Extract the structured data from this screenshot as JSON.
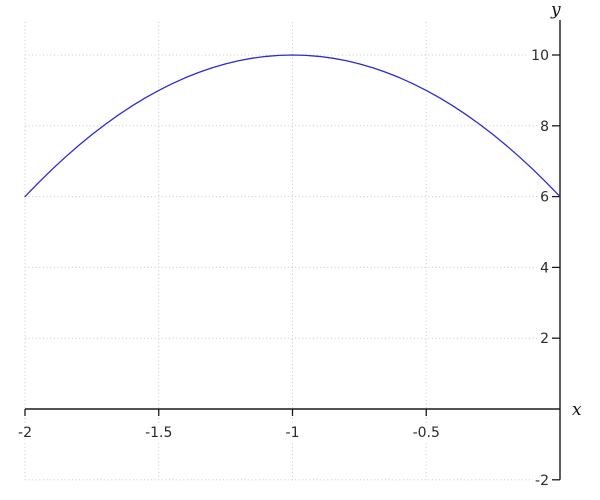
{
  "chart_data": {
    "type": "line",
    "title": "",
    "xlabel": "x",
    "ylabel": "y",
    "expression": "y = 10 - 4*(x + 1)^2",
    "x": [
      -2.0,
      -1.95,
      -1.9,
      -1.85,
      -1.8,
      -1.75,
      -1.7,
      -1.65,
      -1.6,
      -1.55,
      -1.5,
      -1.45,
      -1.4,
      -1.35,
      -1.3,
      -1.25,
      -1.2,
      -1.15,
      -1.1,
      -1.05,
      -1.0,
      -0.95,
      -0.9,
      -0.85,
      -0.8,
      -0.75,
      -0.7,
      -0.65,
      -0.6,
      -0.55,
      -0.5,
      -0.45,
      -0.4,
      -0.35,
      -0.3,
      -0.25,
      -0.2,
      -0.15,
      -0.1,
      -0.05,
      0.0
    ],
    "y": [
      6.0,
      6.39,
      6.76,
      7.11,
      7.44,
      7.75,
      8.04,
      8.31,
      8.56,
      8.79,
      9.0,
      9.19,
      9.36,
      9.51,
      9.64,
      9.75,
      9.84,
      9.91,
      9.96,
      9.99,
      10.0,
      9.99,
      9.96,
      9.91,
      9.84,
      9.75,
      9.64,
      9.51,
      9.36,
      9.19,
      9.0,
      8.79,
      8.56,
      8.31,
      8.04,
      7.75,
      7.44,
      7.11,
      6.76,
      6.39,
      6.0
    ],
    "xlim": [
      -2,
      0
    ],
    "ylim": [
      -2,
      11
    ],
    "x_ticks": [
      -2,
      -1.5,
      -1,
      -0.5
    ],
    "x_tick_labels": [
      "-2",
      "-1.5",
      "-1",
      "-0.5"
    ],
    "y_ticks": [
      10,
      8,
      6,
      4,
      2,
      -2
    ],
    "y_tick_labels": [
      "10",
      "8",
      "6",
      "4",
      "2",
      "-2"
    ],
    "grid": true,
    "grid_style": "dotted",
    "legend": false,
    "line_color": "#2b2bd0",
    "grid_color": "#c9c9c9",
    "axis_color": "#1a1a1a",
    "text_color": "#2b2b2b",
    "background_color": "#ffffff"
  }
}
